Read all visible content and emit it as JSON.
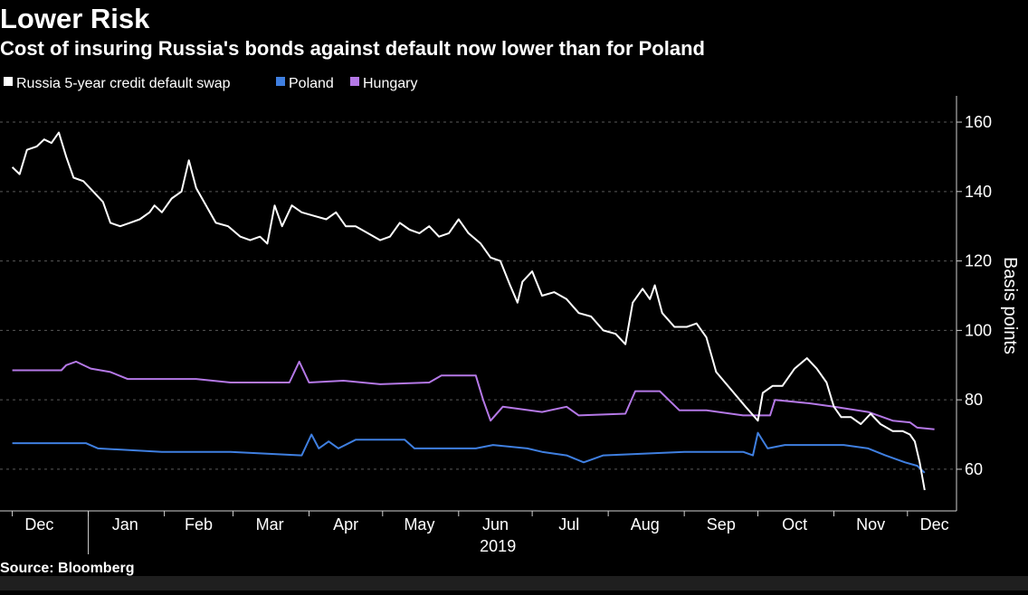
{
  "title": "Lower Risk",
  "subtitle": "Cost of insuring Russia's bonds against default now lower than for Poland",
  "source": "Source: Bloomberg",
  "colors": {
    "background": "#000000",
    "russia": "#ffffff",
    "poland": "#3f7fe0",
    "hungary": "#b478e6",
    "grid": "#5a5a5a",
    "axis": "#d0d0d0"
  },
  "chart_data": {
    "type": "line",
    "title": "Lower Risk",
    "subtitle": "Cost of insuring Russia's bonds against default now lower than for Poland",
    "xlabel": "",
    "ylabel": "Basis points",
    "x_tick_labels": [
      "Dec",
      "Jan",
      "Feb",
      "Mar",
      "Apr",
      "May",
      "Jun",
      "Jul",
      "Aug",
      "Sep",
      "Oct",
      "Nov",
      "Dec"
    ],
    "x_year_label": "2019",
    "x_range": [
      "2018-12-01",
      "2019-12-08"
    ],
    "y_ticks": [
      60,
      80,
      100,
      120,
      140,
      160
    ],
    "ylim": [
      48,
      166
    ],
    "y_axis_position": "right",
    "grid": true,
    "legend_position": "top-left",
    "series": [
      {
        "name": "Russia 5-year credit default swap",
        "color": "#ffffff",
        "points": [
          [
            "2018-12-01",
            147
          ],
          [
            "2018-12-04",
            145
          ],
          [
            "2018-12-07",
            152
          ],
          [
            "2018-12-11",
            153
          ],
          [
            "2018-12-14",
            155
          ],
          [
            "2018-12-17",
            154
          ],
          [
            "2018-12-20",
            157
          ],
          [
            "2018-12-23",
            150
          ],
          [
            "2018-12-26",
            144
          ],
          [
            "2018-12-30",
            143
          ],
          [
            "2019-01-03",
            140
          ],
          [
            "2019-01-07",
            137
          ],
          [
            "2019-01-10",
            131
          ],
          [
            "2019-01-14",
            130
          ],
          [
            "2019-01-18",
            131
          ],
          [
            "2019-01-22",
            132
          ],
          [
            "2019-01-26",
            134
          ],
          [
            "2019-01-28",
            136
          ],
          [
            "2019-01-31",
            134
          ],
          [
            "2019-02-04",
            138
          ],
          [
            "2019-02-08",
            140
          ],
          [
            "2019-02-11",
            149
          ],
          [
            "2019-02-14",
            141
          ],
          [
            "2019-02-18",
            136
          ],
          [
            "2019-02-22",
            131
          ],
          [
            "2019-02-27",
            130
          ],
          [
            "2019-03-04",
            127
          ],
          [
            "2019-03-08",
            126
          ],
          [
            "2019-03-12",
            127
          ],
          [
            "2019-03-15",
            125
          ],
          [
            "2019-03-18",
            136
          ],
          [
            "2019-03-21",
            130
          ],
          [
            "2019-03-25",
            136
          ],
          [
            "2019-03-29",
            134
          ],
          [
            "2019-04-03",
            133
          ],
          [
            "2019-04-08",
            132
          ],
          [
            "2019-04-12",
            134
          ],
          [
            "2019-04-16",
            130
          ],
          [
            "2019-04-20",
            130
          ],
          [
            "2019-04-25",
            128
          ],
          [
            "2019-04-30",
            126
          ],
          [
            "2019-05-04",
            127
          ],
          [
            "2019-05-08",
            131
          ],
          [
            "2019-05-12",
            129
          ],
          [
            "2019-05-16",
            128
          ],
          [
            "2019-05-20",
            130
          ],
          [
            "2019-05-24",
            127
          ],
          [
            "2019-05-28",
            128
          ],
          [
            "2019-06-01",
            132
          ],
          [
            "2019-06-05",
            128
          ],
          [
            "2019-06-10",
            125
          ],
          [
            "2019-06-14",
            121
          ],
          [
            "2019-06-18",
            120
          ],
          [
            "2019-06-22",
            113
          ],
          [
            "2019-06-25",
            108
          ],
          [
            "2019-06-27",
            114
          ],
          [
            "2019-07-01",
            117
          ],
          [
            "2019-07-05",
            110
          ],
          [
            "2019-07-10",
            111
          ],
          [
            "2019-07-15",
            109
          ],
          [
            "2019-07-20",
            105
          ],
          [
            "2019-07-25",
            104
          ],
          [
            "2019-07-30",
            100
          ],
          [
            "2019-08-04",
            99
          ],
          [
            "2019-08-08",
            96
          ],
          [
            "2019-08-11",
            108
          ],
          [
            "2019-08-15",
            112
          ],
          [
            "2019-08-18",
            109
          ],
          [
            "2019-08-20",
            113
          ],
          [
            "2019-08-23",
            105
          ],
          [
            "2019-08-28",
            101
          ],
          [
            "2019-09-02",
            101
          ],
          [
            "2019-09-06",
            102
          ],
          [
            "2019-09-10",
            98
          ],
          [
            "2019-09-14",
            88
          ],
          [
            "2019-09-20",
            83
          ],
          [
            "2019-09-26",
            78
          ],
          [
            "2019-10-01",
            74
          ],
          [
            "2019-10-03",
            82
          ],
          [
            "2019-10-07",
            84
          ],
          [
            "2019-10-11",
            84
          ],
          [
            "2019-10-16",
            89
          ],
          [
            "2019-10-21",
            92
          ],
          [
            "2019-10-25",
            89
          ],
          [
            "2019-10-29",
            85
          ],
          [
            "2019-11-01",
            78
          ],
          [
            "2019-11-04",
            75
          ],
          [
            "2019-11-08",
            75
          ],
          [
            "2019-11-12",
            73
          ],
          [
            "2019-11-16",
            76
          ],
          [
            "2019-11-20",
            73
          ],
          [
            "2019-11-25",
            71
          ],
          [
            "2019-11-29",
            71
          ],
          [
            "2019-12-02",
            70
          ],
          [
            "2019-12-04",
            68
          ],
          [
            "2019-12-06",
            62
          ],
          [
            "2019-12-08",
            54
          ]
        ]
      },
      {
        "name": "Poland",
        "color": "#3f7fe0",
        "points": [
          [
            "2018-12-01",
            67.5
          ],
          [
            "2018-12-31",
            67.5
          ],
          [
            "2019-01-05",
            66
          ],
          [
            "2019-01-31",
            65
          ],
          [
            "2019-02-28",
            65
          ],
          [
            "2019-03-29",
            64
          ],
          [
            "2019-04-02",
            70
          ],
          [
            "2019-04-05",
            66
          ],
          [
            "2019-04-09",
            68
          ],
          [
            "2019-04-13",
            66
          ],
          [
            "2019-04-20",
            68.5
          ],
          [
            "2019-05-10",
            68.5
          ],
          [
            "2019-05-14",
            66
          ],
          [
            "2019-06-08",
            66
          ],
          [
            "2019-06-15",
            67
          ],
          [
            "2019-06-29",
            66
          ],
          [
            "2019-07-05",
            65
          ],
          [
            "2019-07-15",
            64
          ],
          [
            "2019-07-22",
            62
          ],
          [
            "2019-07-30",
            64
          ],
          [
            "2019-08-15",
            64.5
          ],
          [
            "2019-09-01",
            65
          ],
          [
            "2019-09-25",
            65
          ],
          [
            "2019-09-29",
            64
          ],
          [
            "2019-10-01",
            70.5
          ],
          [
            "2019-10-05",
            66
          ],
          [
            "2019-10-12",
            67
          ],
          [
            "2019-11-05",
            67
          ],
          [
            "2019-11-15",
            66
          ],
          [
            "2019-11-22",
            64
          ],
          [
            "2019-11-30",
            62
          ],
          [
            "2019-12-05",
            61
          ],
          [
            "2019-12-08",
            59
          ]
        ]
      },
      {
        "name": "Hungary",
        "color": "#b478e6",
        "points": [
          [
            "2018-12-01",
            88.5
          ],
          [
            "2018-12-21",
            88.5
          ],
          [
            "2018-12-23",
            90
          ],
          [
            "2018-12-27",
            91
          ],
          [
            "2019-01-02",
            89
          ],
          [
            "2019-01-10",
            88
          ],
          [
            "2019-01-17",
            86
          ],
          [
            "2019-02-14",
            86
          ],
          [
            "2019-02-28",
            85
          ],
          [
            "2019-03-24",
            85
          ],
          [
            "2019-03-28",
            91
          ],
          [
            "2019-04-01",
            85
          ],
          [
            "2019-04-15",
            85.5
          ],
          [
            "2019-04-30",
            84.5
          ],
          [
            "2019-05-20",
            85
          ],
          [
            "2019-05-25",
            87
          ],
          [
            "2019-06-08",
            87
          ],
          [
            "2019-06-11",
            80
          ],
          [
            "2019-06-14",
            74
          ],
          [
            "2019-06-19",
            78
          ],
          [
            "2019-07-05",
            76.5
          ],
          [
            "2019-07-15",
            78
          ],
          [
            "2019-07-20",
            75.5
          ],
          [
            "2019-08-08",
            76
          ],
          [
            "2019-08-12",
            82.5
          ],
          [
            "2019-08-22",
            82.5
          ],
          [
            "2019-08-30",
            77
          ],
          [
            "2019-09-10",
            77
          ],
          [
            "2019-09-25",
            75.5
          ],
          [
            "2019-10-06",
            75.5
          ],
          [
            "2019-10-08",
            80
          ],
          [
            "2019-10-22",
            79
          ],
          [
            "2019-11-01",
            78
          ],
          [
            "2019-11-15",
            76.5
          ],
          [
            "2019-11-25",
            74
          ],
          [
            "2019-12-02",
            73.5
          ],
          [
            "2019-12-05",
            72
          ],
          [
            "2019-12-12",
            71.5
          ]
        ]
      }
    ]
  }
}
